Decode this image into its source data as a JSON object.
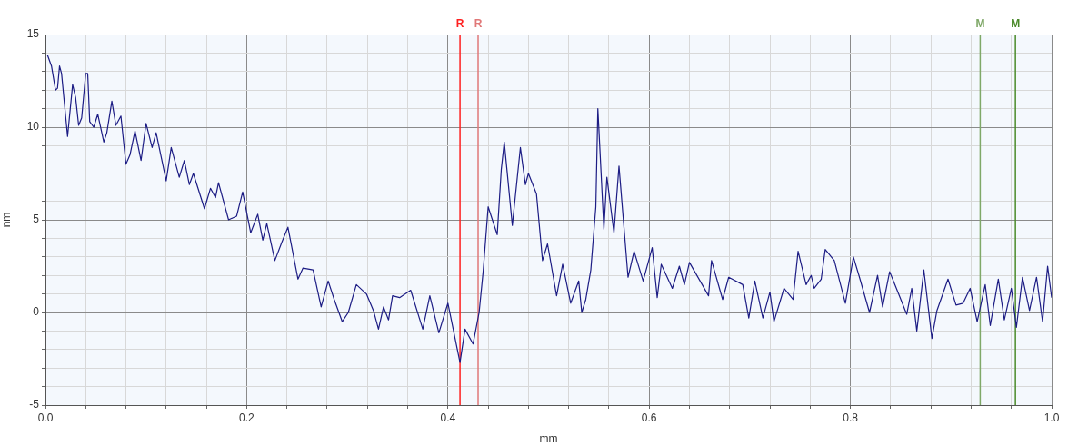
{
  "chart_data": {
    "type": "line",
    "xlabel": "mm",
    "ylabel": "nm",
    "xlim": [
      0,
      1
    ],
    "ylim": [
      -5,
      15
    ],
    "xticks": [
      {
        "value": 0,
        "label": "0.0"
      },
      {
        "value": 0.04,
        "label": null
      },
      {
        "value": 0.08,
        "label": null
      },
      {
        "value": 0.12,
        "label": null
      },
      {
        "value": 0.16,
        "label": null
      },
      {
        "value": 0.2,
        "label": "0.2"
      },
      {
        "value": 0.24,
        "label": null
      },
      {
        "value": 0.28,
        "label": null
      },
      {
        "value": 0.32,
        "label": null
      },
      {
        "value": 0.36,
        "label": null
      },
      {
        "value": 0.4,
        "label": "0.4"
      },
      {
        "value": 0.44,
        "label": null
      },
      {
        "value": 0.48,
        "label": null
      },
      {
        "value": 0.52,
        "label": null
      },
      {
        "value": 0.56,
        "label": null
      },
      {
        "value": 0.6,
        "label": "0.6"
      },
      {
        "value": 0.64,
        "label": null
      },
      {
        "value": 0.68,
        "label": null
      },
      {
        "value": 0.72,
        "label": null
      },
      {
        "value": 0.76,
        "label": null
      },
      {
        "value": 0.8,
        "label": "0.8"
      },
      {
        "value": 0.84,
        "label": null
      },
      {
        "value": 0.88,
        "label": null
      },
      {
        "value": 0.92,
        "label": null
      },
      {
        "value": 0.96,
        "label": null
      },
      {
        "value": 1,
        "label": "1.0"
      }
    ],
    "yticks": [
      -5,
      {
        "value": -4,
        "label": null
      },
      {
        "value": -3,
        "label": null
      },
      {
        "value": -2,
        "label": null
      },
      {
        "value": -1,
        "label": null
      },
      0,
      {
        "value": 1,
        "label": null
      },
      {
        "value": 2,
        "label": null
      },
      {
        "value": 3,
        "label": null
      },
      {
        "value": 4,
        "label": null
      },
      5,
      {
        "value": 6,
        "label": null
      },
      {
        "value": 7,
        "label": null
      },
      {
        "value": 8,
        "label": null
      },
      {
        "value": 9,
        "label": null
      },
      10,
      {
        "value": 11,
        "label": null
      },
      {
        "value": 12,
        "label": null
      },
      {
        "value": 13,
        "label": null
      },
      {
        "value": 14,
        "label": null
      },
      15
    ],
    "grid": true,
    "marker": "none",
    "line_style": "solid",
    "ref_lines": [
      {
        "axis": "x",
        "value": 0.412,
        "label": "R",
        "color": "#ff2020"
      },
      {
        "axis": "x",
        "value": 0.43,
        "label": "R",
        "color": "#e07878"
      },
      {
        "axis": "x",
        "value": 0.929,
        "label": "M",
        "color": "#7fa868"
      },
      {
        "axis": "x",
        "value": 0.964,
        "label": "M",
        "color": "#4a8a2a"
      }
    ],
    "series": [
      {
        "color": "#1c1c84",
        "x": [
          0.002,
          0.006,
          0.01,
          0.012,
          0.014,
          0.016,
          0.022,
          0.027,
          0.03,
          0.033,
          0.036,
          0.04,
          0.042,
          0.044,
          0.048,
          0.052,
          0.058,
          0.061,
          0.066,
          0.07,
          0.075,
          0.08,
          0.084,
          0.089,
          0.095,
          0.1,
          0.106,
          0.11,
          0.12,
          0.125,
          0.133,
          0.138,
          0.143,
          0.147,
          0.158,
          0.164,
          0.169,
          0.172,
          0.182,
          0.19,
          0.196,
          0.204,
          0.211,
          0.216,
          0.22,
          0.228,
          0.235,
          0.241,
          0.251,
          0.256,
          0.266,
          0.274,
          0.281,
          0.287,
          0.295,
          0.301,
          0.309,
          0.319,
          0.326,
          0.331,
          0.336,
          0.341,
          0.345,
          0.352,
          0.363,
          0.375,
          0.382,
          0.391,
          0.4,
          0.412,
          0.417,
          0.425,
          0.431,
          0.435,
          0.44,
          0.449,
          0.453,
          0.456,
          0.464,
          0.472,
          0.477,
          0.48,
          0.488,
          0.494,
          0.499,
          0.508,
          0.514,
          0.522,
          0.53,
          0.533,
          0.537,
          0.542,
          0.547,
          0.549,
          0.555,
          0.558,
          0.565,
          0.57,
          0.579,
          0.585,
          0.594,
          0.603,
          0.608,
          0.612,
          0.623,
          0.63,
          0.635,
          0.64,
          0.659,
          0.662,
          0.673,
          0.679,
          0.693,
          0.699,
          0.705,
          0.713,
          0.72,
          0.724,
          0.734,
          0.743,
          0.748,
          0.756,
          0.761,
          0.764,
          0.771,
          0.775,
          0.784,
          0.795,
          0.803,
          0.809,
          0.819,
          0.827,
          0.832,
          0.839,
          0.845,
          0.856,
          0.861,
          0.866,
          0.873,
          0.881,
          0.886,
          0.897,
          0.905,
          0.912,
          0.919,
          0.926,
          0.934,
          0.939,
          0.947,
          0.953,
          0.96,
          0.965,
          0.971,
          0.978,
          0.985,
          0.991,
          0.996,
          1.0
        ],
        "values": [
          13.9,
          13.3,
          12.0,
          12.1,
          13.3,
          12.9,
          9.5,
          12.3,
          11.6,
          10.1,
          10.5,
          12.9,
          12.9,
          10.3,
          10.0,
          10.7,
          9.2,
          9.7,
          11.4,
          10.1,
          10.6,
          8.0,
          8.5,
          9.8,
          8.2,
          10.2,
          8.9,
          9.7,
          7.1,
          8.9,
          7.3,
          8.2,
          6.9,
          7.5,
          5.6,
          6.7,
          6.2,
          7.0,
          5.0,
          5.2,
          6.5,
          4.3,
          5.3,
          3.9,
          4.8,
          2.8,
          3.8,
          4.6,
          1.8,
          2.4,
          2.3,
          0.3,
          1.7,
          0.7,
          -0.5,
          0,
          1.5,
          1.0,
          0.1,
          -0.9,
          0.3,
          -0.4,
          0.9,
          0.8,
          1.2,
          -0.9,
          0.9,
          -1.1,
          0.5,
          -2.7,
          -0.9,
          -1.7,
          0,
          2.2,
          5.7,
          4.2,
          7.7,
          9.2,
          4.7,
          8.9,
          6.9,
          7.5,
          6.4,
          2.8,
          3.7,
          0.9,
          2.6,
          0.5,
          1.7,
          0.0,
          0.7,
          2.3,
          5.7,
          11.0,
          4.5,
          7.3,
          4.3,
          7.9,
          1.9,
          3.3,
          1.7,
          3.5,
          0.8,
          2.6,
          1.3,
          2.5,
          1.5,
          2.7,
          0.9,
          2.8,
          0.7,
          1.9,
          1.5,
          -0.3,
          1.7,
          -0.3,
          1.1,
          -0.5,
          1.3,
          0.7,
          3.3,
          1.5,
          2.0,
          1.3,
          1.8,
          3.4,
          2.8,
          0.5,
          3.0,
          1.9,
          0,
          2.0,
          0.3,
          2.2,
          1.4,
          -0.1,
          1.3,
          -1.0,
          2.3,
          -1.4,
          0.1,
          1.8,
          0.4,
          0.5,
          1.3,
          -0.5,
          1.5,
          -0.7,
          1.8,
          -0.4,
          1.3,
          -0.8,
          1.9,
          0.1,
          1.9,
          -0.5,
          2.5,
          0.8
        ]
      }
    ]
  }
}
